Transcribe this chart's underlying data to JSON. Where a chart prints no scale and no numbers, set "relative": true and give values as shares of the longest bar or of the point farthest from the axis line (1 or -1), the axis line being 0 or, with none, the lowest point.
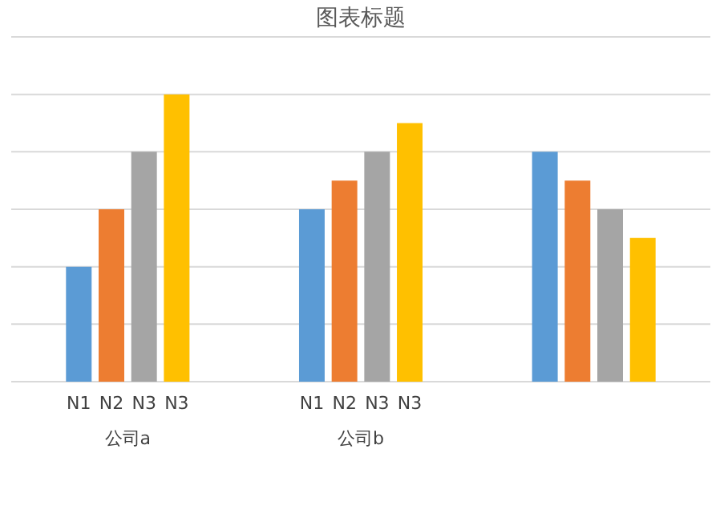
{
  "chart_data": {
    "type": "bar",
    "title": "图表标题",
    "relative": true,
    "grid": true,
    "legend": false,
    "categories": [
      "公司a",
      "公司b",
      null
    ],
    "series": [
      {
        "name": "N1",
        "color": "#5b9bd5",
        "values": [
          0.4,
          0.6,
          0.8
        ]
      },
      {
        "name": "N2",
        "color": "#ed7d31",
        "values": [
          0.6,
          0.7,
          0.7
        ]
      },
      {
        "name": "N3",
        "color": "#a5a5a5",
        "values": [
          0.8,
          0.8,
          0.6
        ]
      },
      {
        "name": "N3",
        "color": "#ffc000",
        "values": [
          1,
          0.9,
          0.5
        ]
      }
    ]
  }
}
